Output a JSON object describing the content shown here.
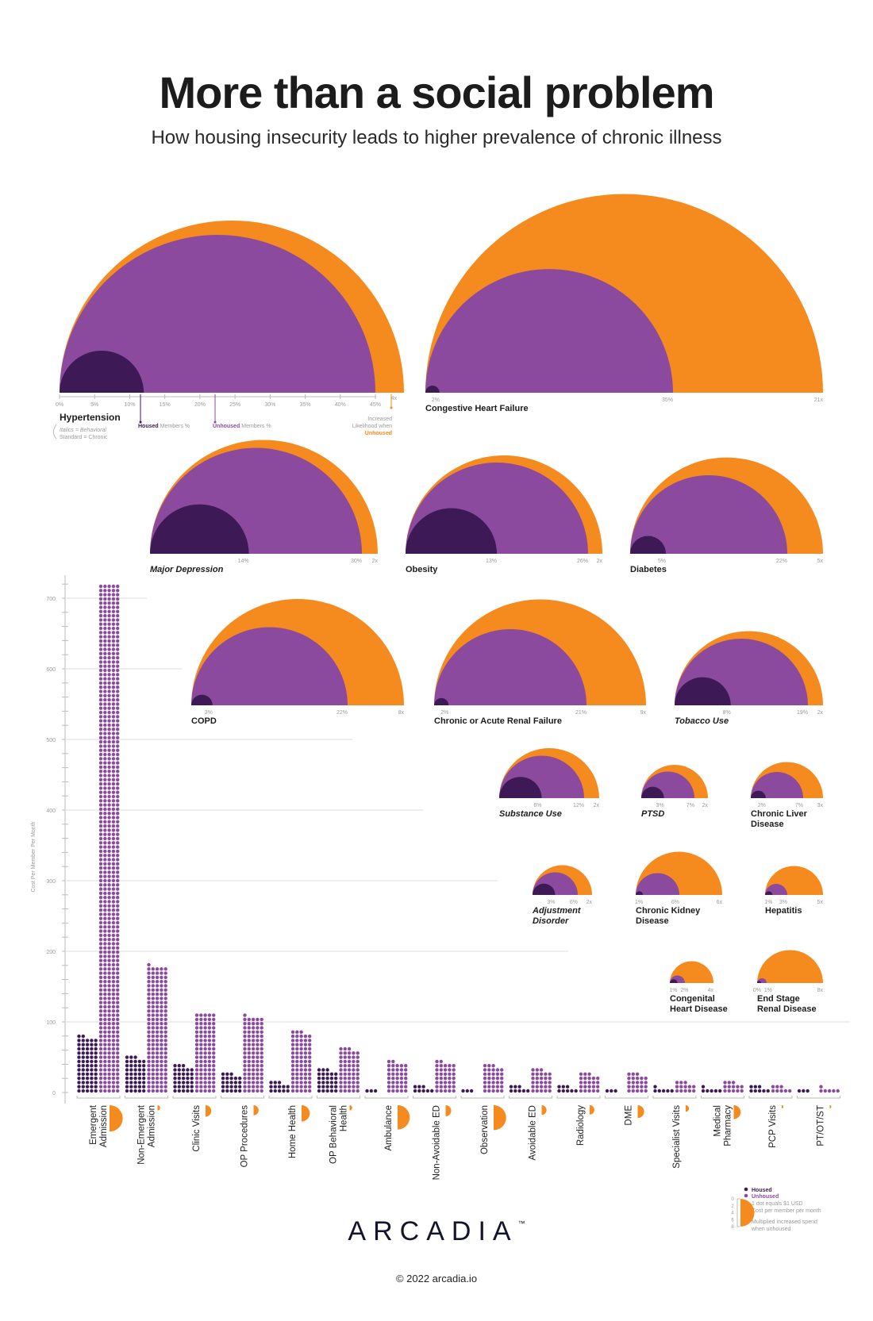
{
  "title": "More than a social problem",
  "subtitle": "How housing insecurity leads to higher prevalence of chronic illness",
  "colors": {
    "housed": "#3D1A55",
    "unhoused": "#8C4A9E",
    "multiplier": "#F58A1F",
    "text": "#1c1c1c",
    "muted": "#9a9a9a"
  },
  "key": {
    "italics_note": "Italics = Behavioral",
    "standard_note": "Standard = Chronic",
    "housed_word": "Housed",
    "unhoused_word": "Unhoused",
    "members_pct": "Members %",
    "increased_line1": "Increased",
    "increased_line2": "Likelihood when",
    "increased_line3": "Unhoused",
    "axis_ticks": [
      "0%",
      "5%",
      "10%",
      "15%",
      "20%",
      "25%",
      "30%",
      "35%",
      "40%",
      "45%"
    ]
  },
  "chart_data": [
    {
      "type": "semicircle",
      "conditions": [
        {
          "name_lines": [
            "Hypertension"
          ],
          "behavioral": false,
          "housed_pct": 12,
          "unhoused_pct": 45,
          "multiplier": 4,
          "housed_label": "",
          "unhoused_label": "",
          "multiplier_label": "4x"
        },
        {
          "name_lines": [
            "Congestive Heart Failure"
          ],
          "behavioral": false,
          "housed_pct": 2,
          "unhoused_pct": 35,
          "multiplier": 21,
          "housed_label": "2%",
          "unhoused_label": "35%",
          "multiplier_label": "21x"
        },
        {
          "name_lines": [
            "Major Depression"
          ],
          "behavioral": true,
          "housed_pct": 14,
          "unhoused_pct": 30,
          "multiplier": 2,
          "housed_label": "14%",
          "unhoused_label": "30%",
          "multiplier_label": "2x"
        },
        {
          "name_lines": [
            "Obesity"
          ],
          "behavioral": false,
          "housed_pct": 13,
          "unhoused_pct": 26,
          "multiplier": 2,
          "housed_label": "13%",
          "unhoused_label": "26%",
          "multiplier_label": "2x"
        },
        {
          "name_lines": [
            "Diabetes"
          ],
          "behavioral": false,
          "housed_pct": 5,
          "unhoused_pct": 22,
          "multiplier": 5,
          "housed_label": "5%",
          "unhoused_label": "22%",
          "multiplier_label": "5x"
        },
        {
          "name_lines": [
            "COPD"
          ],
          "behavioral": false,
          "housed_pct": 3,
          "unhoused_pct": 22,
          "multiplier": 8,
          "housed_label": "3%",
          "unhoused_label": "22%",
          "multiplier_label": "8x"
        },
        {
          "name_lines": [
            "Chronic or Acute Renal Failure"
          ],
          "behavioral": false,
          "housed_pct": 2,
          "unhoused_pct": 21,
          "multiplier": 9,
          "housed_label": "2%",
          "unhoused_label": "21%",
          "multiplier_label": "9x"
        },
        {
          "name_lines": [
            "Tobacco Use"
          ],
          "behavioral": true,
          "housed_pct": 8,
          "unhoused_pct": 19,
          "multiplier": 2,
          "housed_label": "8%",
          "unhoused_label": "19%",
          "multiplier_label": "2x"
        },
        {
          "name_lines": [
            "Substance Use"
          ],
          "behavioral": true,
          "housed_pct": 6,
          "unhoused_pct": 12,
          "multiplier": 2,
          "housed_label": "6%",
          "unhoused_label": "12%",
          "multiplier_label": "2x"
        },
        {
          "name_lines": [
            "PTSD"
          ],
          "behavioral": true,
          "housed_pct": 3,
          "unhoused_pct": 7,
          "multiplier": 2,
          "housed_label": "3%",
          "unhoused_label": "7%",
          "multiplier_label": "2x"
        },
        {
          "name_lines": [
            "Chronic Liver",
            "Disease"
          ],
          "behavioral": false,
          "housed_pct": 2,
          "unhoused_pct": 7,
          "multiplier": 3,
          "housed_label": "2%",
          "unhoused_label": "7%",
          "multiplier_label": "3x"
        },
        {
          "name_lines": [
            "Adjustment",
            "Disorder"
          ],
          "behavioral": true,
          "housed_pct": 3,
          "unhoused_pct": 6,
          "multiplier": 2,
          "housed_label": "3%",
          "unhoused_label": "6%",
          "multiplier_label": "2x"
        },
        {
          "name_lines": [
            "Chronic Kidney",
            "Disease"
          ],
          "behavioral": false,
          "housed_pct": 1,
          "unhoused_pct": 6,
          "multiplier": 6,
          "housed_label": "1%",
          "unhoused_label": "6%",
          "multiplier_label": "6x"
        },
        {
          "name_lines": [
            "Hepatitis"
          ],
          "behavioral": false,
          "housed_pct": 1,
          "unhoused_pct": 3,
          "multiplier": 5,
          "housed_label": "1%",
          "unhoused_label": "3%",
          "multiplier_label": "5x"
        },
        {
          "name_lines": [
            "Congenital",
            "Heart Disease"
          ],
          "behavioral": false,
          "housed_pct": 1,
          "unhoused_pct": 2,
          "multiplier": 4,
          "housed_label": "1%",
          "unhoused_label": "2%",
          "multiplier_label": "4x"
        },
        {
          "name_lines": [
            "End Stage",
            "Renal Disease"
          ],
          "behavioral": false,
          "housed_pct": 0,
          "unhoused_pct": 1,
          "multiplier": 8,
          "housed_label": "0%",
          "unhoused_label": "1%",
          "multiplier_label": "8x"
        }
      ]
    },
    {
      "type": "bar",
      "ylabel": "Cost Per Member Per Month",
      "ylim": [
        0,
        720
      ],
      "yticks": [
        "0",
        "100",
        "200",
        "300",
        "400",
        "500",
        "600",
        "700"
      ],
      "grid": true,
      "categories": [
        [
          "Emergent",
          "Admission"
        ],
        [
          "Non-Emergent",
          "Admission"
        ],
        [
          "Clinic Visits"
        ],
        [
          "OP Procedures"
        ],
        [
          "Home Health"
        ],
        [
          "OP Behavioral",
          "Health"
        ],
        [
          "Ambulance"
        ],
        [
          "Non-Avoidable ED"
        ],
        [
          "Observation"
        ],
        [
          "Avoidable ED"
        ],
        [
          "Radiology"
        ],
        [
          "DME"
        ],
        [
          "Specialist Visits"
        ],
        [
          "Medical",
          "Pharmacy"
        ],
        [
          "PCP Visits"
        ],
        [
          "PT/OT/ST"
        ]
      ],
      "series": [
        {
          "name": "Housed",
          "values": [
            80,
            51,
            39,
            27,
            15,
            33,
            3,
            9,
            3,
            9,
            9,
            3,
            7,
            7,
            9,
            3
          ]
        },
        {
          "name": "Unhoused",
          "values": [
            721,
            180,
            113,
            108,
            87,
            63,
            44,
            44,
            39,
            33,
            27,
            27,
            15,
            15,
            9,
            7
          ]
        }
      ],
      "multiplier": [
        7.6,
        1.5,
        3.3,
        2.9,
        4.7,
        1.5,
        7,
        3.2,
        7.2,
        2.8,
        2.7,
        3.7,
        1.9,
        4,
        0.9,
        0.9
      ],
      "multiplier_scale": [
        "0",
        "2",
        "4",
        "6",
        "8"
      ],
      "legend": {
        "position": "bottom-right",
        "housed": "Housed",
        "unhoused": "Unhoused",
        "dot_note": "1 dot equals $1 USD",
        "unit_note": "Cost per member per month",
        "mult_note_1": "Multiplied increased spend",
        "mult_note_2": "when unhoused"
      }
    }
  ],
  "footer": {
    "logo": "ARCADIA",
    "trademark": "™",
    "copyright": "© 2022 arcadia.io"
  }
}
